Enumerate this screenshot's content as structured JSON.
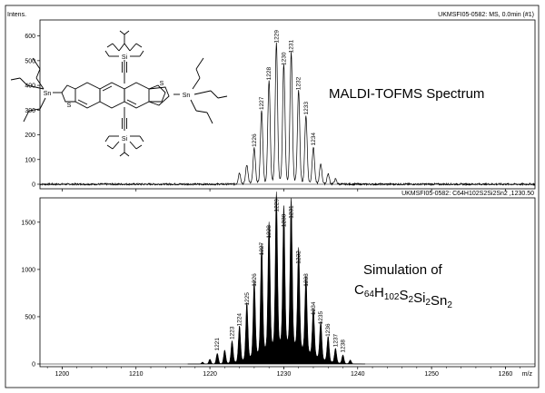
{
  "top_panel": {
    "y_axis_label": "Intens.",
    "header": "UKMSFI05-0582: MS, 0.0min (#1)",
    "annotation": "MALDI-TOFMS Spectrum"
  },
  "bottom_panel": {
    "header": "UKMSFI05-0582: C64H102S2Si2Sn2 ,1230.50",
    "annotation_line1": "Simulation of",
    "formula_parts": [
      {
        "text": "C",
        "sub": false
      },
      {
        "text": "64",
        "sub": true
      },
      {
        "text": "H",
        "sub": false
      },
      {
        "text": "102",
        "sub": true
      },
      {
        "text": "S",
        "sub": false
      },
      {
        "text": "2",
        "sub": true
      },
      {
        "text": "Si",
        "sub": false
      },
      {
        "text": "2",
        "sub": true
      },
      {
        "text": "Sn",
        "sub": false
      },
      {
        "text": "2",
        "sub": true
      }
    ]
  },
  "x_axis_unit": "m/z",
  "molecule_atoms": {
    "si": "Si",
    "sn": "Sn",
    "s": "S"
  },
  "chart_data": [
    {
      "type": "line",
      "title": "MALDI-TOFMS Spectrum",
      "ylabel": "Intens.",
      "xlabel": "m/z",
      "xlim": [
        1197,
        1264
      ],
      "ylim": [
        0,
        650
      ],
      "x_ticks": [
        1200,
        1210,
        1220,
        1230,
        1240,
        1250,
        1260
      ],
      "y_ticks": [
        0,
        100,
        200,
        300,
        400,
        500,
        600
      ],
      "peaks": [
        {
          "x": 1224,
          "y": 45,
          "label": ""
        },
        {
          "x": 1225,
          "y": 75,
          "label": ""
        },
        {
          "x": 1226,
          "y": 140,
          "label": "1226"
        },
        {
          "x": 1227,
          "y": 290,
          "label": "1227"
        },
        {
          "x": 1228,
          "y": 410,
          "label": "1228"
        },
        {
          "x": 1229,
          "y": 560,
          "label": "1229"
        },
        {
          "x": 1230,
          "y": 470,
          "label": "1230"
        },
        {
          "x": 1231,
          "y": 520,
          "label": "1231"
        },
        {
          "x": 1232,
          "y": 370,
          "label": "1232"
        },
        {
          "x": 1233,
          "y": 270,
          "label": "1233"
        },
        {
          "x": 1234,
          "y": 145,
          "label": "1234"
        },
        {
          "x": 1235,
          "y": 80,
          "label": ""
        },
        {
          "x": 1236,
          "y": 40,
          "label": ""
        },
        {
          "x": 1237,
          "y": 20,
          "label": ""
        }
      ]
    },
    {
      "type": "bar",
      "title": "Simulation of C64H102S2Si2Sn2",
      "xlabel": "m/z",
      "xlim": [
        1197,
        1264
      ],
      "ylim": [
        0,
        1700
      ],
      "x_ticks": [
        1200,
        1210,
        1220,
        1230,
        1240,
        1250,
        1260
      ],
      "y_ticks": [
        0,
        500,
        1000,
        1500
      ],
      "peaks": [
        {
          "x": 1219,
          "y": 20,
          "label": ""
        },
        {
          "x": 1220,
          "y": 50,
          "label": ""
        },
        {
          "x": 1221,
          "y": 110,
          "label": "1221"
        },
        {
          "x": 1222,
          "y": 140,
          "label": ""
        },
        {
          "x": 1223,
          "y": 230,
          "label": "1223"
        },
        {
          "x": 1224,
          "y": 370,
          "label": "1224"
        },
        {
          "x": 1225,
          "y": 590,
          "label": "1225"
        },
        {
          "x": 1226,
          "y": 790,
          "label": "1226"
        },
        {
          "x": 1227,
          "y": 1120,
          "label": "1227"
        },
        {
          "x": 1228,
          "y": 1300,
          "label": "1228"
        },
        {
          "x": 1229,
          "y": 1580,
          "label": "1229"
        },
        {
          "x": 1230,
          "y": 1420,
          "label": "1230"
        },
        {
          "x": 1231,
          "y": 1510,
          "label": "1231"
        },
        {
          "x": 1232,
          "y": 1030,
          "label": "1232"
        },
        {
          "x": 1233,
          "y": 790,
          "label": "1233"
        },
        {
          "x": 1234,
          "y": 490,
          "label": "1234"
        },
        {
          "x": 1235,
          "y": 390,
          "label": "1235"
        },
        {
          "x": 1236,
          "y": 260,
          "label": "1236"
        },
        {
          "x": 1237,
          "y": 150,
          "label": "1237"
        },
        {
          "x": 1238,
          "y": 90,
          "label": "1238"
        },
        {
          "x": 1239,
          "y": 40,
          "label": ""
        }
      ]
    }
  ]
}
